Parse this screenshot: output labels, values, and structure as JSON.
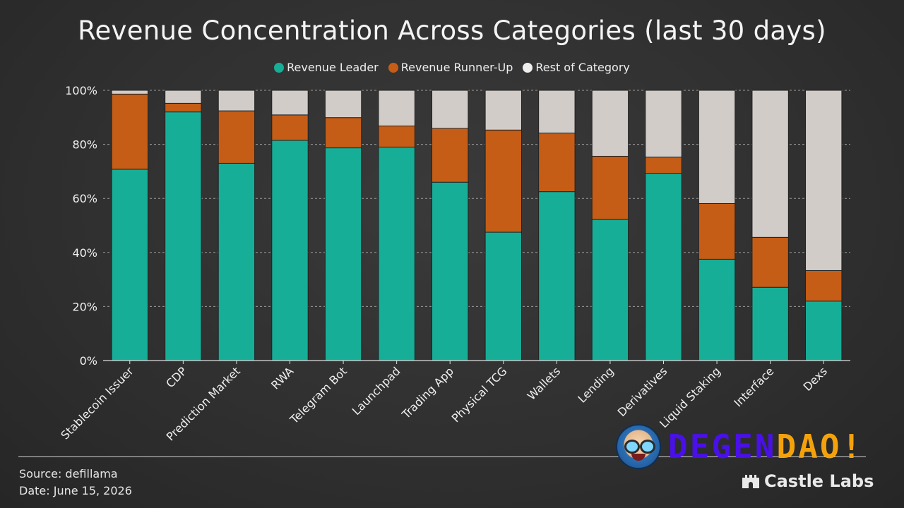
{
  "chart_data": {
    "type": "bar",
    "stacked": true,
    "title": "Revenue Concentration Across Categories (last 30 days)",
    "categories": [
      "Stablecoin Issuer",
      "CDP",
      "Prediction Market",
      "RWA",
      "Telegram Bot",
      "Launchpad",
      "Trading App",
      "Physical TCG",
      "Wallets",
      "Lending",
      "Derivatives",
      "Liquid Staking",
      "Interface",
      "Dexs"
    ],
    "series": [
      {
        "name": "Revenue Leader",
        "color": "#17ae98",
        "values": [
          70.8,
          92.0,
          73.0,
          81.5,
          78.7,
          79.0,
          66.0,
          47.5,
          62.5,
          52.2,
          69.3,
          37.5,
          27.1,
          22.0
        ]
      },
      {
        "name": "Revenue Runner-Up",
        "color": "#c55d17",
        "values": [
          27.8,
          3.2,
          19.4,
          9.4,
          11.2,
          7.8,
          19.9,
          37.8,
          21.7,
          23.4,
          6.0,
          20.6,
          18.5,
          11.3
        ]
      },
      {
        "name": "Rest of Category",
        "color": "#d2ccc8",
        "values": [
          1.4,
          4.8,
          7.6,
          9.1,
          10.1,
          13.2,
          14.1,
          14.7,
          15.8,
          24.4,
          24.7,
          41.9,
          54.4,
          66.7
        ]
      }
    ],
    "ylim": [
      0,
      100
    ],
    "yticks": [
      "0%",
      "20%",
      "40%",
      "60%",
      "80%",
      "100%"
    ],
    "ytick_values": [
      0,
      20,
      40,
      60,
      80,
      100
    ],
    "grid": true,
    "legend_position": "top-center",
    "xlabel": "",
    "ylabel": ""
  },
  "footer": {
    "source": "Source: defillama",
    "date": "Date: June 15, 2026"
  },
  "branding": {
    "degen_part1": "DEGEN",
    "degen_part2": "DAO!",
    "castle_labs": "Castle Labs"
  }
}
